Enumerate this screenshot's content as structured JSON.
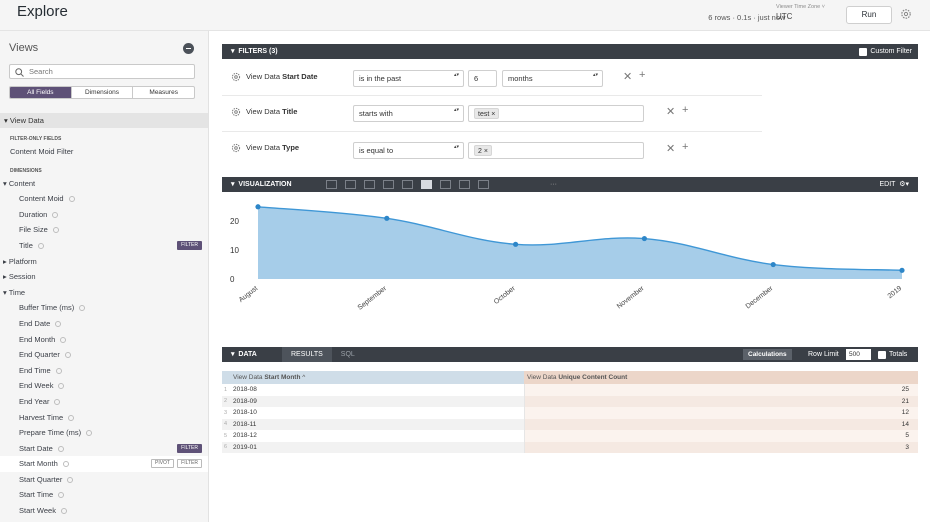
{
  "header": {
    "title": "Explore",
    "run_status": "6 rows · 0.1s · just now ·",
    "timezone_label": "Viewer Time Zone ˅",
    "timezone_value": "UTC",
    "run_label": "Run"
  },
  "sidebar": {
    "title": "Views",
    "search_placeholder": "Search",
    "tabs": [
      "All Fields",
      "Dimensions",
      "Measures"
    ],
    "view_name": "View Data",
    "items": [
      {
        "label": "FILTER-ONLY FIELDS",
        "kind": "section"
      },
      {
        "label": "Content Moid Filter",
        "kind": "field0"
      },
      {
        "label": "DIMENSIONS",
        "kind": "section"
      },
      {
        "label": "Content",
        "kind": "group",
        "expanded": true
      },
      {
        "label": "Content Moid",
        "kind": "field"
      },
      {
        "label": "Duration",
        "kind": "field"
      },
      {
        "label": "File Size",
        "kind": "field"
      },
      {
        "label": "Title",
        "kind": "field",
        "badge": "FILTER"
      },
      {
        "label": "Platform",
        "kind": "group",
        "expanded": false
      },
      {
        "label": "Session",
        "kind": "group",
        "expanded": false
      },
      {
        "label": "Time",
        "kind": "group",
        "expanded": true
      },
      {
        "label": "Buffer Time (ms)",
        "kind": "field"
      },
      {
        "label": "End Date",
        "kind": "field"
      },
      {
        "label": "End Month",
        "kind": "field"
      },
      {
        "label": "End Quarter",
        "kind": "field"
      },
      {
        "label": "End Time",
        "kind": "field"
      },
      {
        "label": "End Week",
        "kind": "field"
      },
      {
        "label": "End Year",
        "kind": "field"
      },
      {
        "label": "Harvest Time",
        "kind": "field"
      },
      {
        "label": "Prepare Time (ms)",
        "kind": "field"
      },
      {
        "label": "Start Date",
        "kind": "field",
        "badge": "FILTER"
      },
      {
        "label": "Start Month",
        "kind": "field",
        "highlight": true,
        "pivot": "PIVOT",
        "filter": "FILTER"
      },
      {
        "label": "Start Quarter",
        "kind": "field"
      },
      {
        "label": "Start Time",
        "kind": "field"
      },
      {
        "label": "Start Week",
        "kind": "field"
      }
    ]
  },
  "filters": {
    "title": "FILTERS (3)",
    "custom_filter_label": "Custom Filter",
    "rows": [
      {
        "prefix": "View Data",
        "field": "Start Date",
        "operator": "is in the past",
        "value": "6",
        "unit": "months"
      },
      {
        "prefix": "View Data",
        "field": "Title",
        "operator": "starts with",
        "tag": "test ×"
      },
      {
        "prefix": "View Data",
        "field": "Type",
        "operator": "is equal to",
        "tag": "2 ×"
      }
    ]
  },
  "visualization": {
    "title": "VISUALIZATION",
    "more": "···",
    "edit_label": "EDIT"
  },
  "chart_data": {
    "type": "area",
    "categories": [
      "August",
      "September",
      "October",
      "November",
      "December",
      "2019"
    ],
    "values": [
      25,
      21,
      12,
      14,
      5,
      3
    ],
    "y_ticks": [
      0,
      10,
      20
    ],
    "ylim": [
      0,
      27
    ],
    "grid": false,
    "colors": {
      "fill": "#a6cde9",
      "line": "#3f97d6",
      "point": "#2d86c8"
    }
  },
  "data_panel": {
    "title": "DATA",
    "tabs": [
      "RESULTS",
      "SQL"
    ],
    "calculations_label": "Calculations",
    "row_limit_label": "Row Limit",
    "row_limit_value": "500",
    "totals_label": "Totals",
    "columns": [
      {
        "prefix": "View Data",
        "name": "Start Month",
        "sort": "^"
      },
      {
        "prefix": "View Data",
        "name": "Unique Content Count"
      }
    ],
    "rows": [
      {
        "n": "1",
        "month": "2018-08",
        "count": "25"
      },
      {
        "n": "2",
        "month": "2018-09",
        "count": "21"
      },
      {
        "n": "3",
        "month": "2018-10",
        "count": "12"
      },
      {
        "n": "4",
        "month": "2018-11",
        "count": "14"
      },
      {
        "n": "5",
        "month": "2018-12",
        "count": "5"
      },
      {
        "n": "6",
        "month": "2019-01",
        "count": "3"
      }
    ]
  }
}
